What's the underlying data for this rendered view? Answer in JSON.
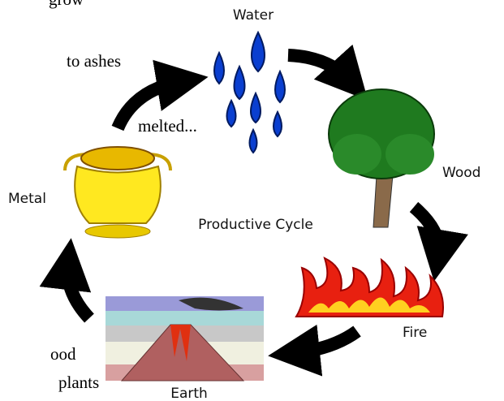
{
  "title": "Productive Cycle",
  "nodes": [
    {
      "label": "Water"
    },
    {
      "label": "Wood"
    },
    {
      "label": "Fire"
    },
    {
      "label": "Earth"
    },
    {
      "label": "Metal"
    }
  ],
  "fragments": [
    "grow",
    "to ashes",
    "melted...",
    "ood",
    "plants"
  ]
}
